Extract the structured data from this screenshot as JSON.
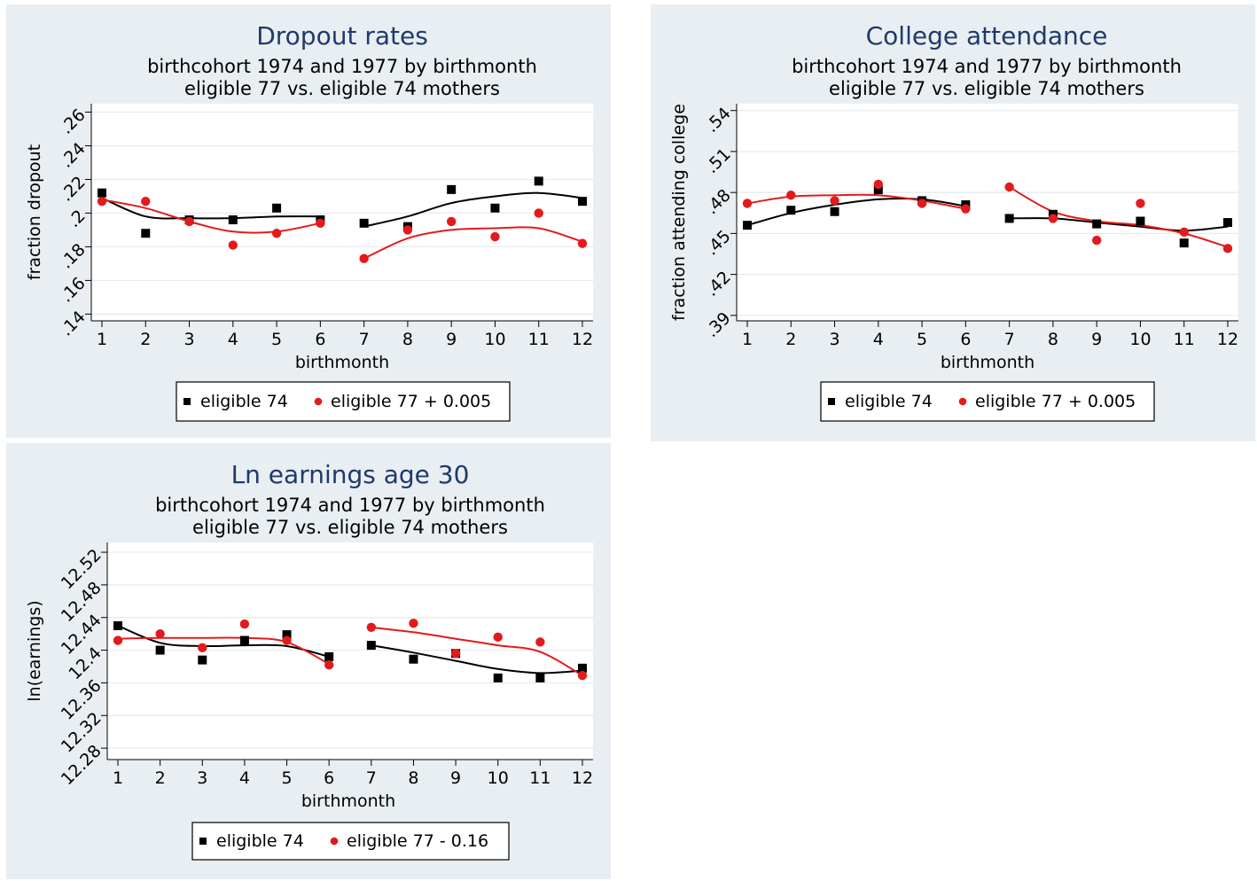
{
  "chart_data": [
    {
      "id": "dropout",
      "type": "scatter",
      "title": "Dropout rates",
      "subtitle": [
        "birthcohort 1974 and 1977 by birthmonth",
        "eligible 77 vs. eligible 74 mothers"
      ],
      "xlabel": "birthmonth",
      "ylabel": "fraction dropout",
      "x_ticks": [
        1,
        2,
        3,
        4,
        5,
        6,
        7,
        8,
        9,
        10,
        11,
        12
      ],
      "y_ticks": [
        0.14,
        0.16,
        0.18,
        0.2,
        0.22,
        0.24,
        0.26
      ],
      "y_tick_labels": [
        ".14",
        ".16",
        ".18",
        ".2",
        ".22",
        ".24",
        ".26"
      ],
      "ylim": [
        0.136,
        0.265
      ],
      "grid": true,
      "legend_position": "bottom",
      "series": [
        {
          "name": "eligible 74",
          "color": "#000000",
          "marker": "square",
          "x": [
            1,
            2,
            3,
            4,
            5,
            6,
            7,
            8,
            9,
            10,
            11,
            12
          ],
          "values": [
            0.212,
            0.188,
            0.196,
            0.196,
            0.203,
            0.196,
            0.194,
            0.192,
            0.214,
            0.203,
            0.219,
            0.207
          ]
        },
        {
          "name": "eligible 77 + 0.005",
          "color": "#e31a1c",
          "marker": "circle",
          "x": [
            1,
            2,
            3,
            4,
            5,
            6,
            7,
            8,
            9,
            10,
            11,
            12
          ],
          "values": [
            0.207,
            0.207,
            0.195,
            0.181,
            0.188,
            0.194,
            0.173,
            0.19,
            0.195,
            0.186,
            0.2,
            0.182
          ]
        }
      ],
      "fit": [
        {
          "color": "#000000",
          "x": [
            1,
            2,
            3,
            4,
            5,
            6
          ],
          "values": [
            0.209,
            0.198,
            0.197,
            0.197,
            0.198,
            0.198
          ]
        },
        {
          "color": "#000000",
          "x": [
            7,
            8,
            9,
            10,
            11,
            12
          ],
          "values": [
            0.192,
            0.198,
            0.206,
            0.21,
            0.212,
            0.209
          ]
        },
        {
          "color": "#e31a1c",
          "x": [
            1,
            2,
            3,
            4,
            5,
            6
          ],
          "values": [
            0.208,
            0.203,
            0.195,
            0.189,
            0.189,
            0.194
          ]
        },
        {
          "color": "#e31a1c",
          "x": [
            7,
            8,
            9,
            10,
            11,
            12
          ],
          "values": [
            0.173,
            0.185,
            0.19,
            0.191,
            0.191,
            0.183
          ]
        }
      ]
    },
    {
      "id": "college",
      "type": "scatter",
      "title": "College attendance",
      "subtitle": [
        "birthcohort 1974 and 1977 by birthmonth",
        "eligible 77 vs. eligible 74 mothers"
      ],
      "xlabel": "birthmonth",
      "ylabel": "fraction attending college",
      "x_ticks": [
        1,
        2,
        3,
        4,
        5,
        6,
        7,
        8,
        9,
        10,
        11,
        12
      ],
      "y_ticks": [
        0.39,
        0.42,
        0.45,
        0.48,
        0.51,
        0.54
      ],
      "y_tick_labels": [
        ".39",
        ".42",
        ".45",
        ".48",
        ".51",
        ".54"
      ],
      "ylim": [
        0.386,
        0.545
      ],
      "grid": true,
      "legend_position": "bottom",
      "series": [
        {
          "name": "eligible 74",
          "color": "#000000",
          "marker": "square",
          "x": [
            1,
            2,
            3,
            4,
            5,
            6,
            7,
            8,
            9,
            10,
            11,
            12
          ],
          "values": [
            0.456,
            0.467,
            0.466,
            0.482,
            0.474,
            0.471,
            0.461,
            0.464,
            0.457,
            0.459,
            0.443,
            0.458
          ]
        },
        {
          "name": "eligible 77 + 0.005",
          "color": "#e31a1c",
          "marker": "circle",
          "x": [
            1,
            2,
            3,
            4,
            5,
            6,
            7,
            8,
            9,
            10,
            11,
            12
          ],
          "values": [
            0.472,
            0.478,
            0.474,
            0.486,
            0.472,
            0.468,
            0.484,
            0.461,
            0.445,
            0.472,
            0.451,
            0.439
          ]
        }
      ],
      "fit": [
        {
          "color": "#000000",
          "x": [
            1,
            2,
            3,
            4,
            5,
            6
          ],
          "values": [
            0.456,
            0.465,
            0.471,
            0.475,
            0.475,
            0.47
          ]
        },
        {
          "color": "#000000",
          "x": [
            7,
            8,
            9,
            10,
            11,
            12
          ],
          "values": [
            0.461,
            0.461,
            0.458,
            0.455,
            0.452,
            0.455
          ]
        },
        {
          "color": "#e31a1c",
          "x": [
            1,
            2,
            3,
            4,
            5,
            6
          ],
          "values": [
            0.472,
            0.477,
            0.478,
            0.478,
            0.474,
            0.468
          ]
        },
        {
          "color": "#e31a1c",
          "x": [
            7,
            8,
            9,
            10,
            11,
            12
          ],
          "values": [
            0.484,
            0.466,
            0.459,
            0.456,
            0.45,
            0.44
          ]
        }
      ]
    },
    {
      "id": "earnings",
      "type": "scatter",
      "title": "Ln earnings age 30",
      "subtitle": [
        "birthcohort 1974 and 1977 by birthmonth",
        "eligible 77 vs. eligible 74 mothers"
      ],
      "xlabel": "birthmonth",
      "ylabel": "ln(earnings)",
      "x_ticks": [
        1,
        2,
        3,
        4,
        5,
        6,
        7,
        8,
        9,
        10,
        11,
        12
      ],
      "y_ticks": [
        12.28,
        12.32,
        12.36,
        12.4,
        12.44,
        12.48,
        12.52
      ],
      "y_tick_labels": [
        "12.28",
        "12.32",
        "12.36",
        "12.4",
        "12.44",
        "12.48",
        "12.52"
      ],
      "ylim": [
        12.266,
        12.532
      ],
      "grid": true,
      "legend_position": "bottom",
      "series": [
        {
          "name": "eligible 74",
          "color": "#000000",
          "marker": "square",
          "x": [
            1,
            2,
            3,
            4,
            5,
            6,
            7,
            8,
            9,
            10,
            11,
            12
          ],
          "values": [
            12.43,
            12.4,
            12.388,
            12.412,
            12.419,
            12.392,
            12.406,
            12.389,
            12.396,
            12.366,
            12.366,
            12.378
          ]
        },
        {
          "name": "eligible 77 - 0.16",
          "color": "#e31a1c",
          "marker": "circle",
          "x": [
            1,
            2,
            3,
            4,
            5,
            6,
            7,
            8,
            9,
            10,
            11,
            12
          ],
          "values": [
            12.412,
            12.42,
            12.403,
            12.432,
            12.412,
            12.382,
            12.428,
            12.433,
            12.396,
            12.416,
            12.41,
            12.369
          ]
        }
      ],
      "fit": [
        {
          "color": "#000000",
          "x": [
            1,
            2,
            3,
            4,
            5,
            6
          ],
          "values": [
            12.43,
            12.409,
            12.405,
            12.406,
            12.405,
            12.392
          ]
        },
        {
          "color": "#000000",
          "x": [
            7,
            8,
            9,
            10,
            11,
            12
          ],
          "values": [
            12.406,
            12.397,
            12.387,
            12.377,
            12.372,
            12.375
          ]
        },
        {
          "color": "#e31a1c",
          "x": [
            1,
            2,
            3,
            4,
            5,
            6
          ],
          "values": [
            12.414,
            12.415,
            12.415,
            12.415,
            12.41,
            12.383
          ]
        },
        {
          "color": "#e31a1c",
          "x": [
            7,
            8,
            9,
            10,
            11,
            12
          ],
          "values": [
            12.428,
            12.422,
            12.414,
            12.406,
            12.398,
            12.369
          ]
        }
      ]
    }
  ]
}
